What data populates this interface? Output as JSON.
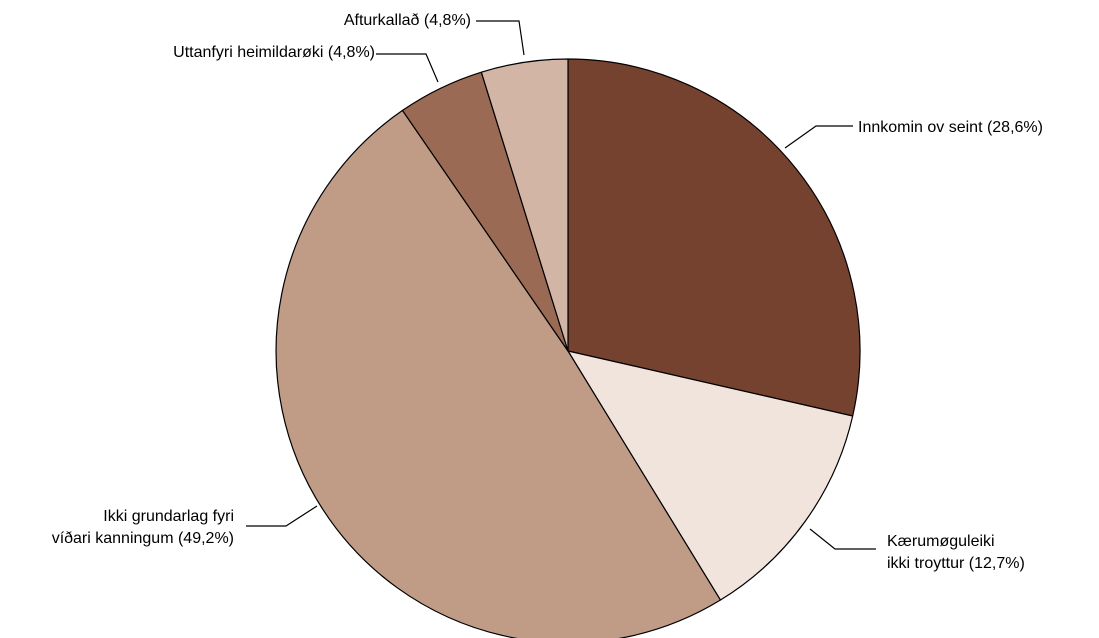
{
  "chart_data": {
    "type": "pie",
    "title": "",
    "start": "12-o-clock",
    "direction": "clockwise",
    "slices": [
      {
        "label_lines": [
          "Innkomin ov seint (28,6%)"
        ],
        "value": 28.6,
        "color": "#764230"
      },
      {
        "label_lines": [
          "Kærumøguleiki",
          "ikki troyttur (12,7%)"
        ],
        "value": 12.7,
        "color": "#f1e4dd"
      },
      {
        "label_lines": [
          "Ikki grundarlag fyri",
          "víðari kanningum (49,2%)"
        ],
        "value": 49.2,
        "color": "#c09c87"
      },
      {
        "label_lines": [
          "Uttanfyri heimildarøki (4,8%)"
        ],
        "value": 4.8,
        "color": "#9a6a54"
      },
      {
        "label_lines": [
          "Afturkallað (4,8%)"
        ],
        "value": 4.8,
        "color": "#d3b5a6"
      }
    ]
  }
}
